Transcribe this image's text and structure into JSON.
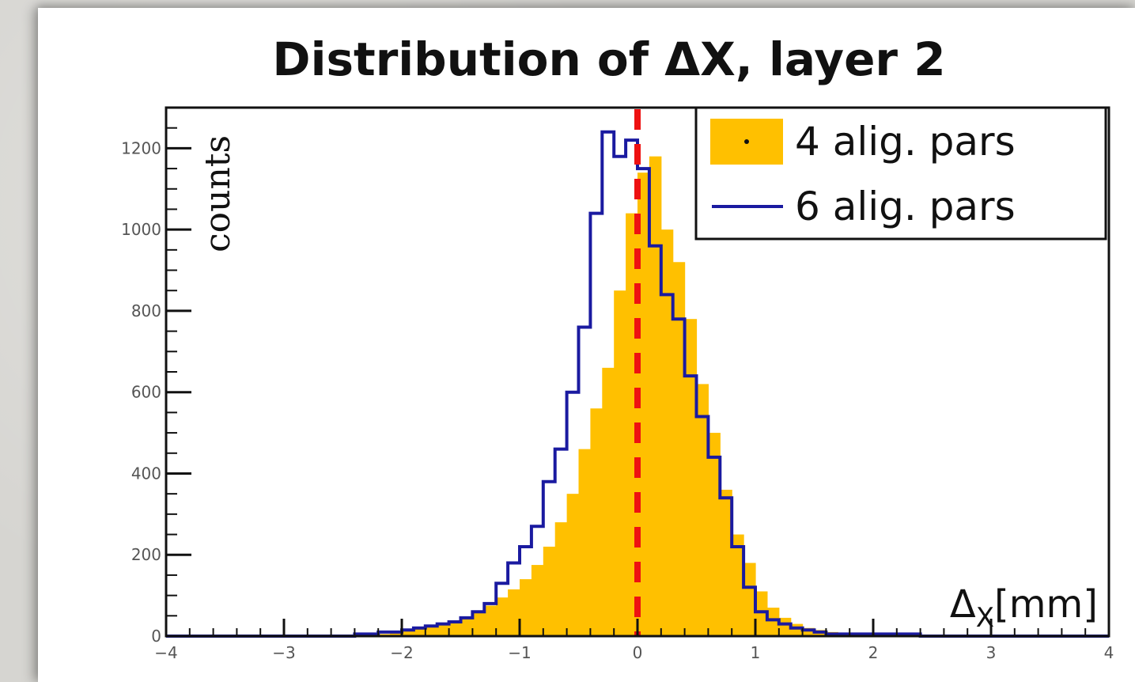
{
  "chart_data": {
    "type": "bar",
    "title": "Distribution of ΔX, layer 2",
    "xlabel": "Δ_X[mm]",
    "ylabel": "counts",
    "xlim": [
      -4,
      4
    ],
    "ylim": [
      0,
      1300
    ],
    "x_ticks": [
      "-4",
      "-3",
      "-2",
      "-1",
      "0",
      "1",
      "2",
      "3",
      "4"
    ],
    "y_ticks": [
      "0",
      "200",
      "400",
      "600",
      "800",
      "1000",
      "1200"
    ],
    "bin_width": 0.1,
    "legend_position": "top-right",
    "reference_line": {
      "x": 0,
      "style": "dashed",
      "color": "#ee1111"
    },
    "series": [
      {
        "name": "4 alig. pars",
        "style": "filled",
        "color": "#ffc000",
        "x": [
          -4.0,
          -3.9,
          -3.8,
          -3.7,
          -3.6,
          -3.5,
          -3.4,
          -3.3,
          -3.2,
          -3.1,
          -3.0,
          -2.9,
          -2.8,
          -2.7,
          -2.6,
          -2.5,
          -2.4,
          -2.3,
          -2.2,
          -2.1,
          -2.0,
          -1.9,
          -1.8,
          -1.7,
          -1.6,
          -1.5,
          -1.4,
          -1.3,
          -1.2,
          -1.1,
          -1.0,
          -0.9,
          -0.8,
          -0.7,
          -0.6,
          -0.5,
          -0.4,
          -0.3,
          -0.2,
          -0.1,
          0.0,
          0.1,
          0.2,
          0.3,
          0.4,
          0.5,
          0.6,
          0.7,
          0.8,
          0.9,
          1.0,
          1.1,
          1.2,
          1.3,
          1.4,
          1.5,
          1.6,
          1.7,
          1.8,
          1.9,
          2.0,
          2.1,
          2.2,
          2.3,
          2.4,
          2.5,
          2.6,
          2.7,
          2.8,
          2.9,
          3.0,
          3.1,
          3.2,
          3.3,
          3.4,
          3.5,
          3.6,
          3.7,
          3.8,
          3.9
        ],
        "values": [
          0,
          0,
          0,
          0,
          0,
          0,
          0,
          0,
          0,
          0,
          0,
          0,
          0,
          0,
          0,
          0,
          0,
          5,
          5,
          10,
          15,
          20,
          25,
          30,
          35,
          45,
          60,
          75,
          95,
          115,
          140,
          175,
          220,
          280,
          350,
          460,
          560,
          660,
          850,
          1040,
          1140,
          1180,
          1000,
          920,
          780,
          620,
          500,
          360,
          250,
          180,
          110,
          70,
          45,
          30,
          20,
          15,
          10,
          5,
          5,
          5,
          5,
          5,
          5,
          5,
          0,
          0,
          0,
          0,
          0,
          0,
          0,
          0,
          0,
          0,
          0,
          0,
          0,
          0,
          0,
          0
        ]
      },
      {
        "name": "6 alig. pars",
        "style": "step",
        "color": "#1a1aa0",
        "x": [
          -4.0,
          -3.9,
          -3.8,
          -3.7,
          -3.6,
          -3.5,
          -3.4,
          -3.3,
          -3.2,
          -3.1,
          -3.0,
          -2.9,
          -2.8,
          -2.7,
          -2.6,
          -2.5,
          -2.4,
          -2.3,
          -2.2,
          -2.1,
          -2.0,
          -1.9,
          -1.8,
          -1.7,
          -1.6,
          -1.5,
          -1.4,
          -1.3,
          -1.2,
          -1.1,
          -1.0,
          -0.9,
          -0.8,
          -0.7,
          -0.6,
          -0.5,
          -0.4,
          -0.3,
          -0.2,
          -0.1,
          0.0,
          0.1,
          0.2,
          0.3,
          0.4,
          0.5,
          0.6,
          0.7,
          0.8,
          0.9,
          1.0,
          1.1,
          1.2,
          1.3,
          1.4,
          1.5,
          1.6,
          1.7,
          1.8,
          1.9,
          2.0,
          2.1,
          2.2,
          2.3,
          2.4,
          2.5,
          2.6,
          2.7,
          2.8,
          2.9,
          3.0,
          3.1,
          3.2,
          3.3,
          3.4,
          3.5,
          3.6,
          3.7,
          3.8,
          3.9
        ],
        "values": [
          0,
          0,
          0,
          0,
          0,
          0,
          0,
          0,
          0,
          0,
          0,
          0,
          0,
          0,
          0,
          0,
          5,
          5,
          10,
          10,
          15,
          20,
          25,
          30,
          35,
          45,
          60,
          80,
          130,
          180,
          220,
          270,
          380,
          460,
          600,
          760,
          1040,
          1240,
          1180,
          1220,
          1150,
          960,
          840,
          780,
          640,
          540,
          440,
          340,
          220,
          120,
          60,
          40,
          30,
          20,
          15,
          10,
          5,
          5,
          5,
          5,
          5,
          5,
          5,
          5,
          0,
          0,
          0,
          0,
          0,
          0,
          0,
          0,
          0,
          0,
          0,
          0,
          0,
          0,
          0,
          0
        ]
      }
    ]
  }
}
